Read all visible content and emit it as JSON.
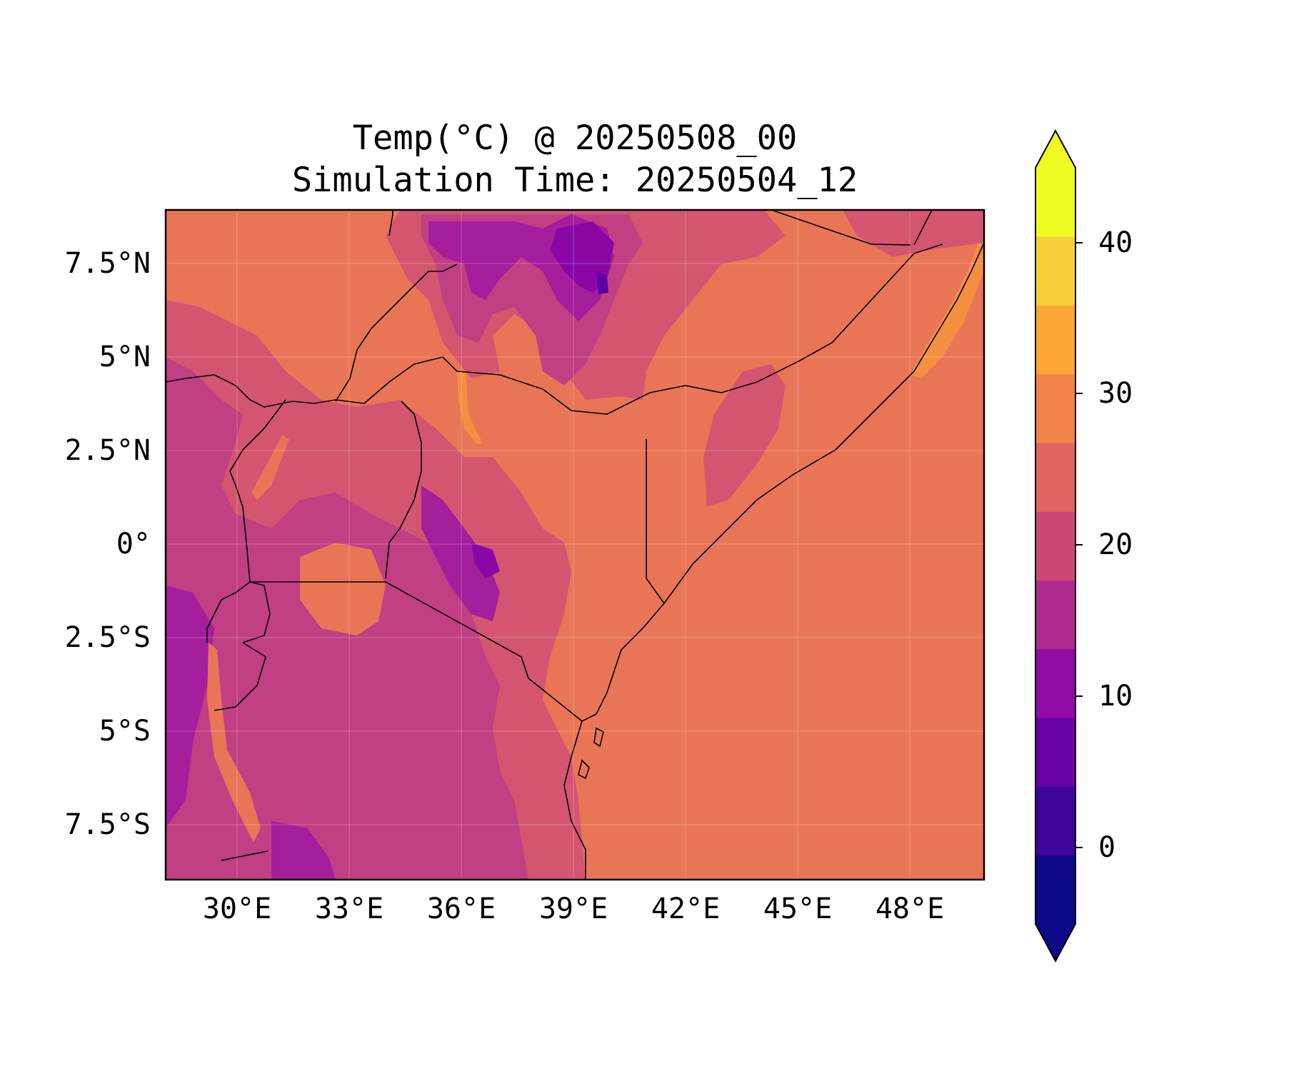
{
  "title": {
    "line1": "Temp(°C) @ 20250508_00",
    "line2": "Simulation Time: 20250504_12"
  },
  "map": {
    "lat_ticks": [
      "7.5°N",
      "5°N",
      "2.5°N",
      "0°",
      "2.5°S",
      "5°S",
      "7.5°S"
    ],
    "lon_ticks": [
      "30°E",
      "33°E",
      "36°E",
      "39°E",
      "42°E",
      "45°E",
      "48°E"
    ],
    "ocean_color": "#e97557",
    "field_colors": {
      "c0_5": "#5c01a6",
      "c5_10": "#8a07a6",
      "c10_15": "#a51e9c",
      "c15_20": "#c13f83",
      "c20_25": "#d45570",
      "c25_30": "#e97557",
      "c30_35": "#f48f41",
      "c35_40": "#fdb42f"
    }
  },
  "colorbar": {
    "labels": [
      "0",
      "10",
      "20",
      "30",
      "40"
    ],
    "colors": [
      "#0d0887",
      "#3e049c",
      "#6800a8",
      "#8f0da4",
      "#b12a90",
      "#cc4778",
      "#e16462",
      "#f2844b",
      "#fca636",
      "#f7d03c",
      "#f0f921"
    ],
    "extend": "both"
  }
}
